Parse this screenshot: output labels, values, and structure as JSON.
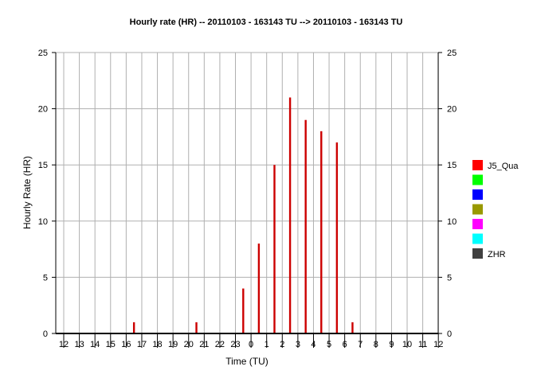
{
  "chart_data": {
    "type": "bar",
    "title": "Hourly rate (HR) -- 20110103 - 163143 TU --> 20110103 - 163143 TU",
    "xlabel": "Time (TU)",
    "ylabel": "Hourly Rate (HR)",
    "ylim": [
      0,
      25
    ],
    "yticks": [
      0,
      5,
      10,
      15,
      20,
      25
    ],
    "grid": true,
    "legend_position": "right",
    "categories": [
      "12",
      "13",
      "14",
      "15",
      "16",
      "17",
      "18",
      "19",
      "20",
      "21",
      "22",
      "23",
      "0",
      "1",
      "2",
      "3",
      "4",
      "5",
      "6",
      "7",
      "8",
      "9",
      "10",
      "11",
      "12"
    ],
    "series": [
      {
        "name": "J5_Qua",
        "color": "#cc0000",
        "values": [
          0,
          0,
          0,
          0,
          1,
          0,
          0,
          0,
          1,
          0,
          0,
          4,
          8,
          15,
          21,
          19,
          18,
          17,
          1,
          0,
          0,
          0,
          0,
          0,
          0
        ]
      }
    ],
    "legend": [
      {
        "label": "J5_Qua",
        "color": "#ff0000"
      },
      {
        "label": "",
        "color": "#00ff00"
      },
      {
        "label": "",
        "color": "#0000ff"
      },
      {
        "label": "",
        "color": "#999900"
      },
      {
        "label": "",
        "color": "#ff00ff"
      },
      {
        "label": "",
        "color": "#00ffff"
      },
      {
        "label": "ZHR",
        "color": "#404040"
      }
    ]
  }
}
